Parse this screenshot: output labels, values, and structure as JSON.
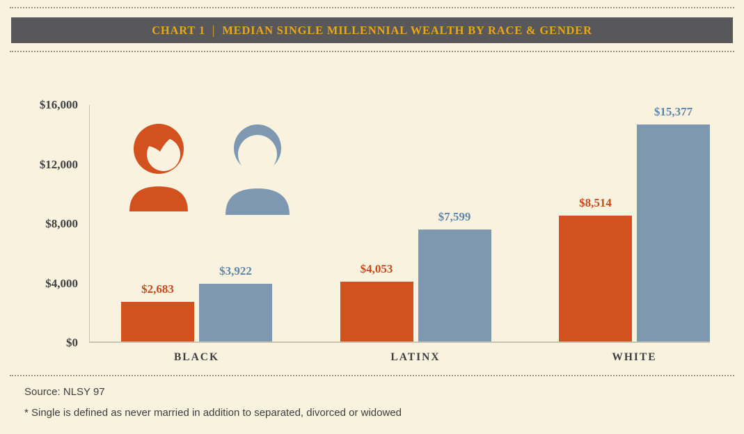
{
  "header": {
    "chart_label": "CHART 1",
    "divider": "|",
    "title": "MEDIAN SINGLE MILLENNIAL WEALTH BY RACE & GENDER"
  },
  "legend": {
    "female_icon": "woman-silhouette",
    "male_icon": "man-silhouette"
  },
  "colors": {
    "background": "#f8f2de",
    "header_bg": "#58585a",
    "header_text": "#e9a616",
    "women_bar": "#d3511e",
    "men_bar": "#7e98b2",
    "women_label": "#c8491c",
    "men_label": "#5f85aa",
    "axis": "#c9c4af",
    "text": "#3f3f41"
  },
  "chart_data": {
    "type": "bar",
    "title": "MEDIAN SINGLE MILLENNIAL WEALTH BY RACE & GENDER",
    "categories": [
      "BLACK",
      "LATINX",
      "WHITE"
    ],
    "series": [
      {
        "name": "women",
        "color": "#d3511e",
        "values": [
          2683,
          4053,
          8514
        ],
        "labels": [
          "$2,683",
          "$4,053",
          "$8,514"
        ]
      },
      {
        "name": "men",
        "color": "#7e98b2",
        "values": [
          3922,
          7599,
          15377
        ],
        "labels": [
          "$3,922",
          "$7,599",
          "$15,377"
        ]
      }
    ],
    "ylim": [
      0,
      16000
    ],
    "yticks": [
      {
        "value": 0,
        "label": "$0"
      },
      {
        "value": 4000,
        "label": "$4,000"
      },
      {
        "value": 8000,
        "label": "$8,000"
      },
      {
        "value": 12000,
        "label": "$12,000"
      },
      {
        "value": 16000,
        "label": "$16,000"
      }
    ],
    "grid": false,
    "legend_position": "top-left-icons"
  },
  "footer": {
    "source": "Source: NLSY 97",
    "footnote": "* Single is defined as never married in addition to separated, divorced or widowed"
  }
}
